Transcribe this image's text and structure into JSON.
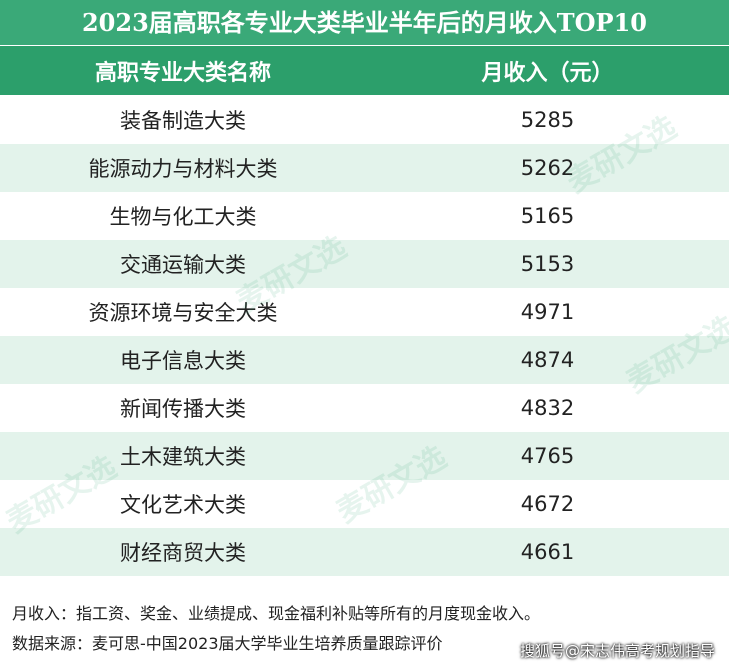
{
  "title": "2023届高职各专业大类毕业半年后的月收入TOP10",
  "table": {
    "header": [
      "高职专业大类名称",
      "月收入（元）"
    ],
    "rows": [
      [
        "装备制造大类",
        5285
      ],
      [
        "能源动力与材料大类",
        5262
      ],
      [
        "生物与化工大类",
        5165
      ],
      [
        "交通运输大类",
        5153
      ],
      [
        "资源环境与安全大类",
        4971
      ],
      [
        "电子信息大类",
        4874
      ],
      [
        "新闻传播大类",
        4832
      ],
      [
        "土木建筑大类",
        4765
      ],
      [
        "文化艺术大类",
        4672
      ],
      [
        "财经商贸大类",
        4661
      ]
    ]
  },
  "notes": [
    "月收入：指工资、奖金、业绩提成、现金福利补贴等所有的月度现金收入。",
    "数据来源：麦可思-中国2023届大学毕业生培养质量跟踪评价"
  ],
  "watermark": "麦研文选",
  "source_tag": "搜狐号@宋志伟高考规划指导"
}
